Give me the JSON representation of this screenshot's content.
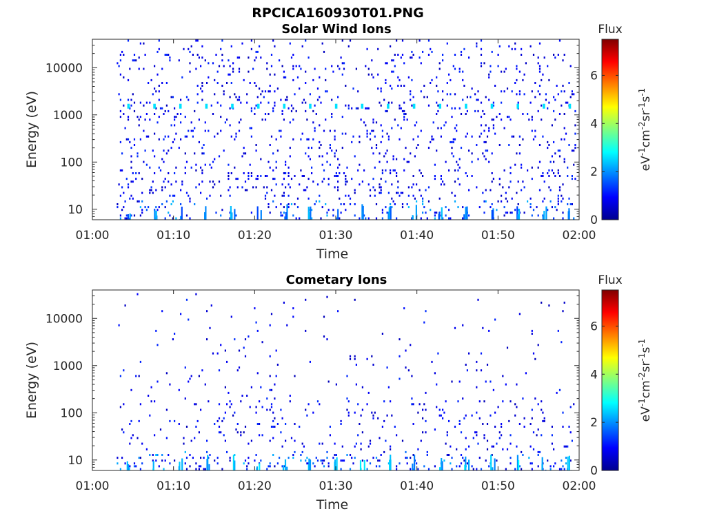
{
  "figure": {
    "title": "RPCICA160930T01.PNG",
    "colormap": "jet"
  },
  "chart_data": [
    {
      "type": "heatmap",
      "title": "Solar Wind Ions",
      "xlabel": "Time",
      "ylabel": "Energy (eV)",
      "x_ticks": [
        "01:00",
        "01:10",
        "01:20",
        "01:30",
        "01:40",
        "01:50",
        "02:00"
      ],
      "x_range_minutes": [
        0,
        60
      ],
      "y_scale": "log",
      "y_ticks": [
        10,
        100,
        1000,
        10000
      ],
      "y_tick_labels": [
        "10",
        "100",
        "1000",
        "10000"
      ],
      "y_range": [
        6,
        40000
      ],
      "colorbar": {
        "title": "Flux",
        "label": "eV-1cm-2sr-1s-1",
        "label_parts": [
          "eV",
          "-1",
          "cm",
          "-2",
          "sr",
          "-1",
          "s",
          "-1"
        ],
        "range": [
          0,
          7.5
        ],
        "ticks": [
          "0",
          "2",
          "4",
          "6"
        ]
      },
      "data_start_minute": 3,
      "data_end_minute": 59.5,
      "features": {
        "periodic_band_energy_eV": 1550,
        "periodic_band_flux": 2.6,
        "periodic_band_times_min": [
          4.3,
          7.5,
          10.7,
          13.9,
          17.1,
          20.3,
          23.5,
          26.7,
          29.9,
          33.1,
          36.3,
          39.5,
          42.7,
          45.9,
          49.1,
          52.3,
          55.5,
          58.7
        ],
        "low_energy_max_flux": 2.6
      }
    },
    {
      "type": "heatmap",
      "title": "Cometary Ions",
      "xlabel": "Time",
      "ylabel": "Energy (eV)",
      "x_ticks": [
        "01:00",
        "01:10",
        "01:20",
        "01:30",
        "01:40",
        "01:50",
        "02:00"
      ],
      "x_range_minutes": [
        0,
        60
      ],
      "y_scale": "log",
      "y_ticks": [
        10,
        100,
        1000,
        10000
      ],
      "y_tick_labels": [
        "10",
        "100",
        "1000",
        "10000"
      ],
      "y_range": [
        6,
        40000
      ],
      "colorbar": {
        "title": "Flux",
        "label": "eV-1cm-2sr-1s-1",
        "label_parts": [
          "eV",
          "-1",
          "cm",
          "-2",
          "sr",
          "-1",
          "s",
          "-1"
        ],
        "range": [
          0,
          7.5
        ],
        "ticks": [
          "0",
          "2",
          "4",
          "6"
        ]
      },
      "data_start_minute": 3,
      "data_end_minute": 59.5,
      "features": {
        "low_energy_band_times_min": [
          4.3,
          7.5,
          10.7,
          13.9,
          17.1,
          20.3,
          23.5,
          26.7,
          29.9,
          33.1,
          36.3,
          39.5,
          42.7,
          45.9,
          49.1,
          52.3,
          55.5,
          58.7
        ],
        "low_energy_max_flux": 2.8
      }
    }
  ]
}
